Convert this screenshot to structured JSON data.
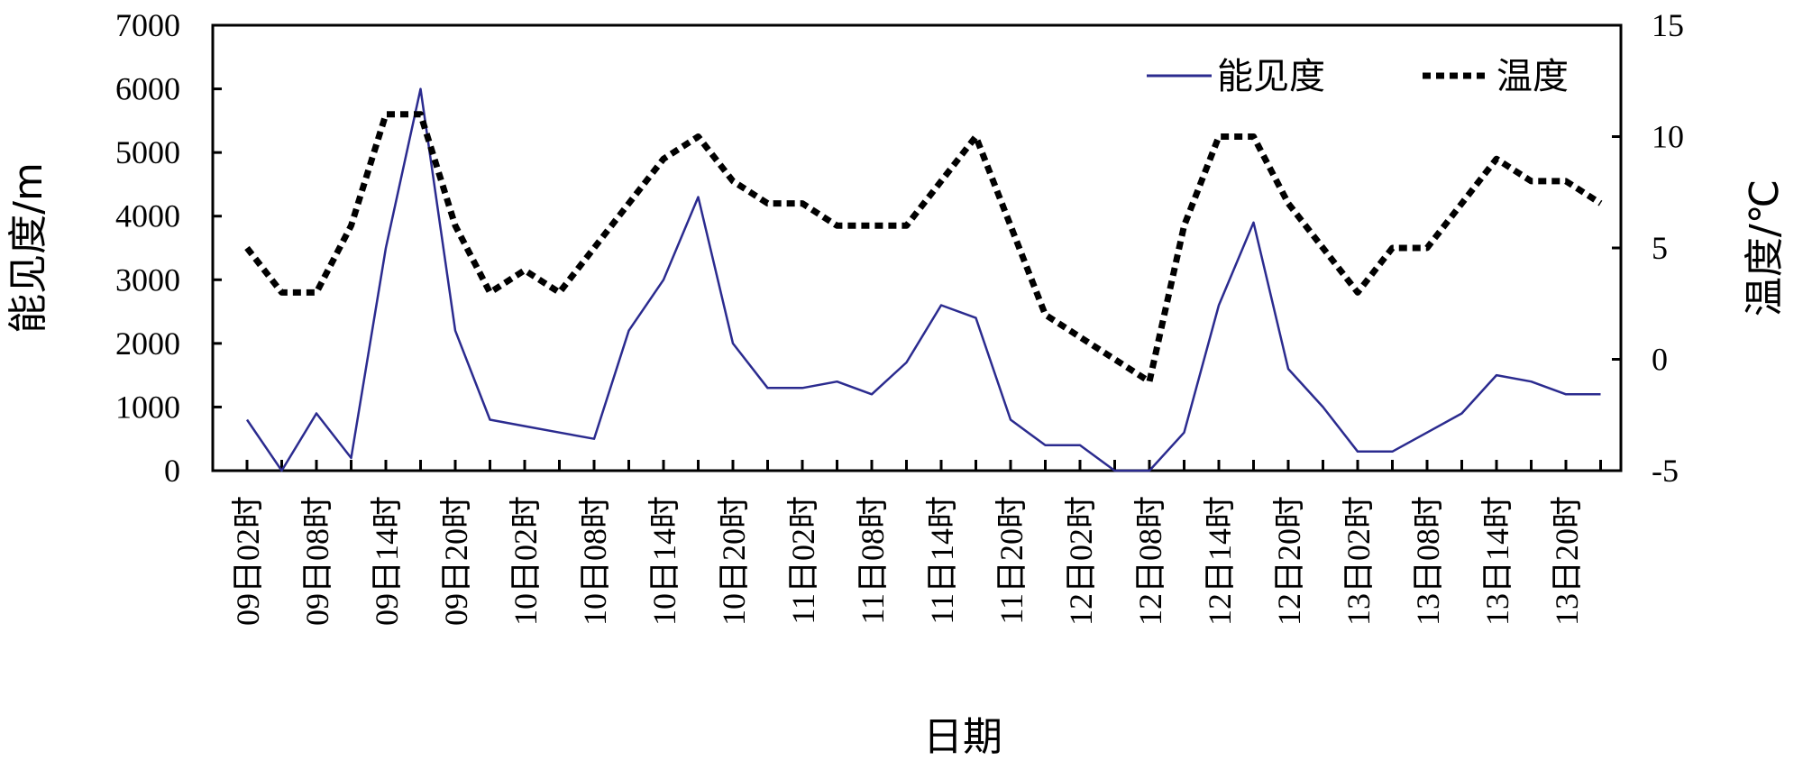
{
  "chart_data": {
    "type": "line",
    "xlabel": "日期",
    "ylabel_left": "能见度/m",
    "ylabel_right": "温度/℃",
    "ylim_left": [
      0,
      7000
    ],
    "ylim_right": [
      -5,
      15
    ],
    "yticks_left": [
      "0",
      "1000",
      "2000",
      "3000",
      "4000",
      "5000",
      "6000",
      "7000"
    ],
    "yticks_right": [
      "-5",
      "0",
      "5",
      "10",
      "15"
    ],
    "x_tick_labels": [
      "09日02时",
      "09日08时",
      "09日14时",
      "09日20时",
      "10日02时",
      "10日08时",
      "10日14时",
      "10日20时",
      "11日02时",
      "11日08时",
      "11日14时",
      "11日20时",
      "12日02时",
      "12日08时",
      "12日14时",
      "12日20时",
      "13日02时",
      "13日08时",
      "13日14时",
      "13日20时"
    ],
    "grid": false,
    "legend_position": "top-right",
    "series": [
      {
        "name": "能见度",
        "axis": "left",
        "style": "solid",
        "color": "#2b2b8f",
        "values": [
          800,
          0,
          900,
          200,
          3500,
          6000,
          2200,
          800,
          700,
          600,
          500,
          2200,
          3000,
          4300,
          2000,
          1300,
          1300,
          1400,
          1200,
          1700,
          2600,
          2400,
          800,
          400,
          400,
          0,
          0,
          600,
          2600,
          3900,
          1600,
          1000,
          300,
          300,
          600,
          900,
          1500,
          1400,
          1200,
          1200
        ]
      },
      {
        "name": "温度",
        "axis": "right",
        "style": "dotted",
        "color": "#000000",
        "values": [
          5,
          3,
          3,
          6,
          11,
          11,
          6,
          3,
          4,
          3,
          5,
          7,
          9,
          10,
          8,
          7,
          7,
          6,
          6,
          6,
          8,
          10,
          6,
          2,
          1,
          0,
          -1,
          6,
          10,
          10,
          7,
          5,
          3,
          5,
          5,
          7,
          9,
          8,
          8,
          7
        ]
      }
    ]
  }
}
